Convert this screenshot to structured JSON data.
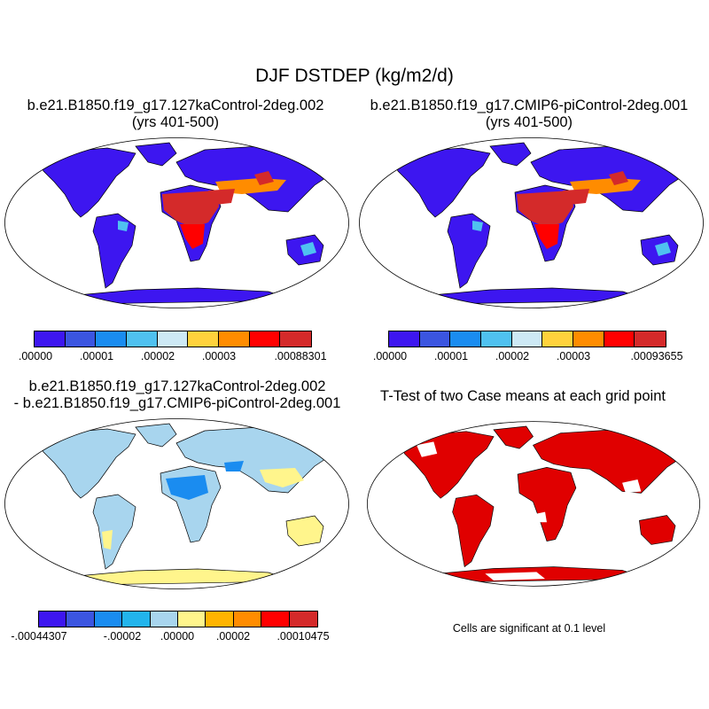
{
  "title": "DJF DSTDEP (kg/m2/d)",
  "panels": [
    {
      "id": "case1",
      "title_line1": "b.e21.B1850.f19_g17.127kaControl-2deg.002",
      "title_line2": "(yrs 401-500)",
      "colorbar": {
        "colors": [
          "#3d16f0",
          "#3b55e0",
          "#1a8cf0",
          "#4fc1f0",
          "#cde9f5",
          "#ffd23c",
          "#ff8c00",
          "#ff0000",
          "#d42a2a"
        ],
        "labels": [
          ".00000",
          ".00001",
          ".00002",
          ".00003",
          ".00088301"
        ]
      }
    },
    {
      "id": "case2",
      "title_line1": "b.e21.B1850.f19_g17.CMIP6-piControl-2deg.001",
      "title_line2": "(yrs 401-500)",
      "colorbar": {
        "colors": [
          "#3d16f0",
          "#3b55e0",
          "#1a8cf0",
          "#4fc1f0",
          "#cde9f5",
          "#ffd23c",
          "#ff8c00",
          "#ff0000",
          "#d42a2a"
        ],
        "labels": [
          ".00000",
          ".00001",
          ".00002",
          ".00003",
          ".00093655"
        ]
      }
    },
    {
      "id": "difference",
      "title_line1": "b.e21.B1850.f19_g17.127kaControl-2deg.002",
      "title_line2": "- b.e21.B1850.f19_g17.CMIP6-piControl-2deg.001",
      "colorbar": {
        "colors": [
          "#3d16f0",
          "#3b55e0",
          "#1a8cf0",
          "#22b4ec",
          "#a8d5ee",
          "#fff58c",
          "#ffb400",
          "#ff8c00",
          "#ff0000",
          "#d42a2a"
        ],
        "labels": [
          "-.00044307",
          "-.00002",
          ".00000",
          ".00002",
          ".00010475"
        ]
      }
    },
    {
      "id": "ttest",
      "title_line1": "T-Test of two Case means at each grid point",
      "note": "Cells are significant at 0.1 level"
    }
  ],
  "map_colors": {
    "land_low": "#3d16f0",
    "dust_high": "#d42a2a",
    "dust_mid": "#ff0000",
    "dust_orange": "#ff8c00",
    "dust_light": "#4fc1f0",
    "diff_base": "#a8d5ee",
    "diff_pos": "#fff58c",
    "diff_neg": "#1a8cf0",
    "significant": "#e00000"
  }
}
